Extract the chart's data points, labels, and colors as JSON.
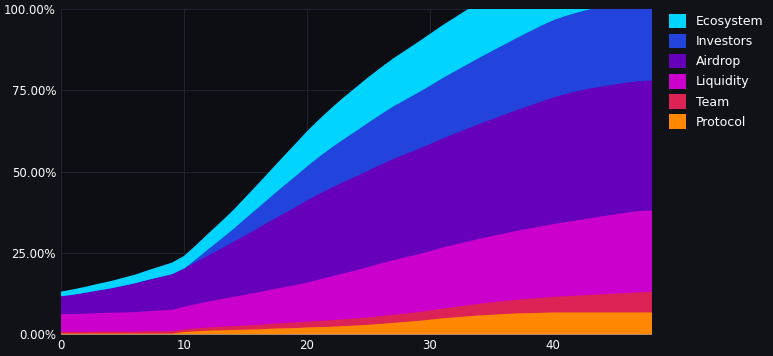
{
  "background_color": "#111118",
  "plot_bg_color": "#0d0d14",
  "grid_color": "#252535",
  "x_max": 48,
  "y_ticks": [
    0,
    0.25,
    0.5,
    0.75,
    1.0
  ],
  "y_tick_labels": [
    "0.00%",
    "25.00%",
    "50.00%",
    "75.00%",
    "100.00%"
  ],
  "x_ticks": [
    0,
    10,
    20,
    30,
    40
  ],
  "legend_labels": [
    "Ecosystem",
    "Investors",
    "Airdrop",
    "Liquidity",
    "Team",
    "Protocol"
  ],
  "legend_colors": [
    "#00d4ff",
    "#2244dd",
    "#6600bb",
    "#cc00cc",
    "#dd2255",
    "#ff8800"
  ],
  "series_colors_ordered": [
    "#ff8800",
    "#dd2255",
    "#cc00cc",
    "#6600bb",
    "#2244dd",
    "#00d4ff"
  ],
  "x_points": [
    0,
    1,
    2,
    3,
    4,
    5,
    6,
    7,
    8,
    9,
    10,
    11,
    12,
    13,
    14,
    15,
    16,
    17,
    18,
    19,
    20,
    21,
    22,
    23,
    24,
    25,
    26,
    27,
    28,
    29,
    30,
    31,
    32,
    33,
    34,
    35,
    36,
    37,
    38,
    39,
    40,
    41,
    42,
    43,
    44,
    45,
    46,
    47,
    48
  ],
  "protocol": [
    0.005,
    0.005,
    0.005,
    0.005,
    0.005,
    0.005,
    0.005,
    0.005,
    0.005,
    0.005,
    0.01,
    0.012,
    0.014,
    0.015,
    0.016,
    0.017,
    0.018,
    0.02,
    0.021,
    0.022,
    0.024,
    0.025,
    0.026,
    0.028,
    0.03,
    0.032,
    0.035,
    0.038,
    0.041,
    0.044,
    0.048,
    0.052,
    0.055,
    0.058,
    0.061,
    0.063,
    0.065,
    0.067,
    0.068,
    0.069,
    0.07,
    0.07,
    0.07,
    0.07,
    0.07,
    0.07,
    0.07,
    0.07,
    0.07
  ],
  "team": [
    0.005,
    0.005,
    0.005,
    0.006,
    0.006,
    0.006,
    0.006,
    0.007,
    0.007,
    0.007,
    0.008,
    0.009,
    0.01,
    0.011,
    0.012,
    0.013,
    0.014,
    0.015,
    0.016,
    0.017,
    0.018,
    0.019,
    0.02,
    0.021,
    0.022,
    0.023,
    0.024,
    0.025,
    0.026,
    0.027,
    0.028,
    0.03,
    0.032,
    0.034,
    0.036,
    0.038,
    0.04,
    0.042,
    0.044,
    0.046,
    0.048,
    0.05,
    0.052,
    0.054,
    0.056,
    0.058,
    0.06,
    0.062,
    0.064
  ],
  "liquidity": [
    0.055,
    0.055,
    0.056,
    0.057,
    0.058,
    0.059,
    0.06,
    0.062,
    0.064,
    0.066,
    0.07,
    0.075,
    0.08,
    0.085,
    0.09,
    0.095,
    0.1,
    0.105,
    0.11,
    0.115,
    0.12,
    0.128,
    0.135,
    0.142,
    0.148,
    0.155,
    0.162,
    0.168,
    0.173,
    0.178,
    0.183,
    0.188,
    0.192,
    0.196,
    0.2,
    0.204,
    0.208,
    0.212,
    0.216,
    0.22,
    0.224,
    0.228,
    0.232,
    0.236,
    0.24,
    0.244,
    0.248,
    0.25,
    0.25
  ],
  "airdrop": [
    0.055,
    0.06,
    0.065,
    0.07,
    0.075,
    0.082,
    0.089,
    0.096,
    0.103,
    0.11,
    0.118,
    0.13,
    0.143,
    0.156,
    0.17,
    0.184,
    0.198,
    0.212,
    0.226,
    0.24,
    0.254,
    0.264,
    0.274,
    0.282,
    0.29,
    0.298,
    0.305,
    0.312,
    0.318,
    0.324,
    0.33,
    0.336,
    0.342,
    0.348,
    0.354,
    0.36,
    0.366,
    0.372,
    0.378,
    0.384,
    0.39,
    0.395,
    0.398,
    0.4,
    0.4,
    0.4,
    0.4,
    0.4,
    0.4
  ],
  "investors": [
    0.0,
    0.0,
    0.0,
    0.0,
    0.0,
    0.0,
    0.0,
    0.0,
    0.0,
    0.0,
    0.0,
    0.01,
    0.02,
    0.03,
    0.04,
    0.052,
    0.063,
    0.074,
    0.085,
    0.095,
    0.105,
    0.115,
    0.124,
    0.132,
    0.14,
    0.148,
    0.155,
    0.162,
    0.168,
    0.174,
    0.18,
    0.186,
    0.192,
    0.198,
    0.204,
    0.21,
    0.216,
    0.222,
    0.228,
    0.234,
    0.238,
    0.24,
    0.242,
    0.244,
    0.246,
    0.248,
    0.25,
    0.252,
    0.254
  ],
  "ecosystem": [
    0.01,
    0.012,
    0.014,
    0.016,
    0.018,
    0.02,
    0.022,
    0.025,
    0.028,
    0.031,
    0.034,
    0.038,
    0.043,
    0.048,
    0.053,
    0.06,
    0.068,
    0.076,
    0.085,
    0.094,
    0.103,
    0.11,
    0.117,
    0.124,
    0.13,
    0.135,
    0.139,
    0.143,
    0.147,
    0.151,
    0.155,
    0.158,
    0.161,
    0.164,
    0.166,
    0.168,
    0.17,
    0.172,
    0.174,
    0.176,
    0.178,
    0.18,
    0.182,
    0.18,
    0.178,
    0.176,
    0.174,
    0.022,
    0.022
  ]
}
